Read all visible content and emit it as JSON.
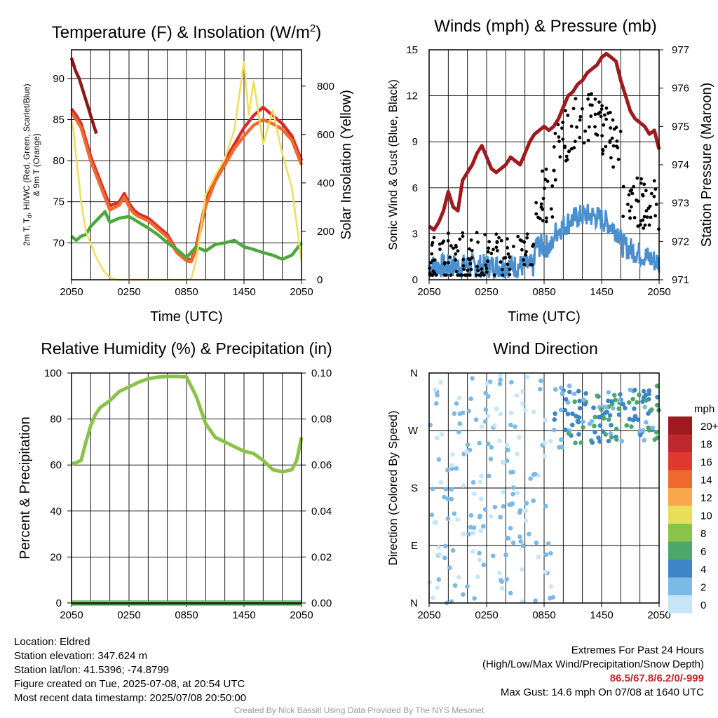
{
  "charts": {
    "temperature": {
      "title": "Temperature (F) & Insolation (W/m",
      "title_sup": "2",
      "title_end": ")",
      "ylabel_lines": [
        "2m T, T",
        "d",
        ", HI/WC (Red, Green, Scarlet/Blue)",
        "& 9m T (Orange)"
      ],
      "ylabel2": "Solar Insolation (Yellow)",
      "xlabel": "Time (UTC)"
    },
    "winds": {
      "title": "Winds (mph) & Pressure (mb)",
      "ylabel": "Sonic Wind & Gust (Blue, Black)",
      "ylabel2": "Station Pressure (Maroon)",
      "xlabel": "Time (UTC)"
    },
    "humidity": {
      "title": "Relative Humidity (%) & Precipitation (in)",
      "ylabel": "Percent & Precipitation"
    },
    "direction": {
      "title": "Wind Direction",
      "ylabel": "Direction (Colored By Speed)",
      "legend_title": "mph",
      "legend_labels": [
        "20+",
        "18",
        "16",
        "14",
        "12",
        "10",
        "8",
        "6",
        "4",
        "2",
        "0"
      ],
      "legend_colors": [
        "#9e1a1f",
        "#c0282d",
        "#e03a30",
        "#ef6a2e",
        "#f8a84a",
        "#e8de5a",
        "#8bc34a",
        "#4aa86a",
        "#3d85c6",
        "#7bb9e6",
        "#c6e6f8"
      ]
    }
  },
  "chart_data": [
    {
      "type": "line",
      "title": "Temperature (F) & Insolation (W/m2)",
      "xlabel": "Time (UTC)",
      "x_ticks": [
        "2050",
        "0250",
        "0850",
        "1450",
        "2050"
      ],
      "x_range_hours": [
        0,
        24
      ],
      "ylim": [
        65.5,
        93.5
      ],
      "y_ticks": [
        70,
        75,
        80,
        85,
        90
      ],
      "y2lim": [
        0,
        950
      ],
      "y2_ticks": [
        0,
        200,
        400,
        600,
        800
      ],
      "series": [
        {
          "axis": "left",
          "color": "#8b1a1a",
          "x": [
            0,
            0.4,
            0.8,
            1.2,
            1.6,
            2.0,
            2.4,
            2.6
          ],
          "values": [
            92.5,
            91.0,
            90.0,
            88.5,
            87.0,
            85.5,
            84.0,
            83.3
          ]
        },
        {
          "axis": "left",
          "color": "#d62e27",
          "x": [
            0,
            0.5,
            1,
            1.5,
            2,
            3,
            4,
            5,
            5.5,
            6,
            6.5,
            7,
            8,
            9,
            10,
            11,
            12,
            12.5,
            13,
            14,
            15,
            16,
            17,
            18,
            19,
            20,
            21,
            22,
            23,
            24
          ],
          "values": [
            86.3,
            85.5,
            84.5,
            82.5,
            80.5,
            77.5,
            74.5,
            75.0,
            76.0,
            74.8,
            74.0,
            73.5,
            73.0,
            72.0,
            71.0,
            69.0,
            68.0,
            67.9,
            69.5,
            75.0,
            78.0,
            80.0,
            82.0,
            84.0,
            85.5,
            86.5,
            85.5,
            84.5,
            83.0,
            80.0
          ]
        },
        {
          "axis": "left",
          "color": "#ef6a2e",
          "x": [
            0,
            0.5,
            1,
            1.5,
            2,
            3,
            4,
            5,
            5.5,
            6,
            6.5,
            7,
            8,
            9,
            10,
            11,
            12,
            12.5,
            13,
            14,
            15,
            16,
            17,
            18,
            19,
            20,
            21,
            22,
            23,
            24
          ],
          "values": [
            85.8,
            85.0,
            84.0,
            82.0,
            80.0,
            77.0,
            74.0,
            74.6,
            75.6,
            74.4,
            73.6,
            73.2,
            72.7,
            71.7,
            70.7,
            68.8,
            67.8,
            67.7,
            69.2,
            74.5,
            77.5,
            79.5,
            81.5,
            83.0,
            84.3,
            85.0,
            84.5,
            83.8,
            82.5,
            79.5
          ]
        },
        {
          "axis": "left",
          "color": "#4aa83c",
          "x": [
            0,
            0.5,
            1,
            1.5,
            2,
            3,
            3.5,
            4,
            5,
            6,
            7,
            8,
            9,
            10,
            11,
            12,
            13,
            14,
            15,
            16,
            17,
            18,
            19,
            20,
            21,
            22,
            23,
            24
          ],
          "values": [
            70.8,
            70.3,
            70.8,
            71.0,
            72.0,
            73.2,
            73.8,
            72.5,
            73.0,
            73.2,
            72.5,
            71.8,
            71.0,
            70.0,
            69.2,
            68.2,
            69.5,
            69.0,
            69.8,
            70.0,
            70.3,
            69.5,
            69.2,
            68.8,
            68.5,
            68.0,
            68.5,
            70.0
          ]
        },
        {
          "axis": "right",
          "color": "#f2dc58",
          "x": [
            0,
            0.2,
            0.5,
            0.8,
            1.0,
            1.5,
            2.0,
            2.5,
            3.0,
            3.5,
            4.0,
            4.5,
            5,
            12,
            12.5,
            13,
            14,
            15,
            16,
            17,
            18,
            18.5,
            19,
            20,
            21,
            22,
            23,
            24
          ],
          "values": [
            650,
            620,
            500,
            400,
            320,
            200,
            150,
            100,
            60,
            30,
            10,
            2,
            0,
            0,
            5,
            80,
            350,
            430,
            500,
            620,
            900,
            680,
            820,
            560,
            700,
            520,
            380,
            80
          ]
        }
      ]
    },
    {
      "type": "line",
      "title": "Winds (mph) & Pressure (mb)",
      "xlabel": "Time (UTC)",
      "x_ticks": [
        "2050",
        "0250",
        "0850",
        "1450",
        "2050"
      ],
      "x_range_hours": [
        0,
        24
      ],
      "ylim": [
        0,
        15
      ],
      "y_ticks": [
        0,
        3,
        6,
        9,
        12,
        15
      ],
      "y2lim": [
        971,
        977
      ],
      "y2_ticks": [
        971,
        972,
        973,
        974,
        975,
        976,
        977
      ],
      "series": [
        {
          "axis": "right",
          "color": "#9e1a1f",
          "x": [
            0,
            0.5,
            1,
            1.5,
            2,
            2.5,
            3,
            3.5,
            4,
            4.5,
            5,
            5.5,
            6,
            6.5,
            7,
            7.5,
            8,
            8.5,
            9,
            9.5,
            10,
            10.5,
            11,
            11.5,
            12,
            12.5,
            13,
            13.5,
            14,
            14.5,
            15,
            15.5,
            16,
            16.5,
            17,
            17.5,
            18,
            18.5,
            19,
            19.5,
            20,
            20.5,
            21,
            21.5,
            22,
            22.5,
            23,
            23.5,
            24
          ],
          "values": [
            972.4,
            972.3,
            972.5,
            972.8,
            973.3,
            972.9,
            972.8,
            973.6,
            973.8,
            974.0,
            974.3,
            974.5,
            974.2,
            973.9,
            973.8,
            973.9,
            974.0,
            974.2,
            974.1,
            974.0,
            974.3,
            974.6,
            974.8,
            974.9,
            975.0,
            974.9,
            975.0,
            975.2,
            975.5,
            975.8,
            975.9,
            976.1,
            976.2,
            976.4,
            976.5,
            976.6,
            976.8,
            976.9,
            976.8,
            976.7,
            976.2,
            975.8,
            975.4,
            975.2,
            975.1,
            975.0,
            974.8,
            974.9,
            974.4
          ]
        }
      ]
    },
    {
      "type": "line",
      "title": "Relative Humidity (%) & Precipitation (in)",
      "ylabel": "Percent & Precipitation",
      "x_ticks": [
        "2050",
        "0250",
        "0850",
        "1450",
        "2050"
      ],
      "x_range_hours": [
        0,
        24
      ],
      "ylim": [
        0,
        100
      ],
      "y_ticks": [
        0,
        20,
        40,
        60,
        80,
        100
      ],
      "y2lim": [
        0,
        0.1
      ],
      "y2_ticks": [
        "0.00",
        "0.02",
        "0.04",
        "0.06",
        "0.08",
        "0.10"
      ],
      "series": [
        {
          "axis": "left",
          "color": "#8bc34a",
          "x": [
            0,
            0.5,
            1,
            1.5,
            2,
            2.5,
            3,
            4,
            5,
            6,
            7,
            8,
            9,
            10,
            11,
            12,
            13,
            14,
            15,
            16,
            17,
            18,
            19,
            20,
            21,
            22,
            23,
            23.5,
            24
          ],
          "values": [
            60.5,
            61,
            62,
            70,
            77,
            82,
            85,
            88,
            92,
            94,
            96,
            97.5,
            98.2,
            98.5,
            98.5,
            98.3,
            90,
            78,
            72,
            70,
            68,
            66,
            65,
            62,
            58,
            57,
            58,
            62,
            72
          ]
        },
        {
          "axis": "right",
          "color": "#2e8b3e",
          "x": [
            0,
            24
          ],
          "values": [
            0,
            0
          ]
        }
      ]
    },
    {
      "type": "scatter",
      "title": "Wind Direction",
      "ylabel": "Direction (Colored By Speed)",
      "x_ticks": [
        "2050",
        "0250",
        "0850",
        "1450",
        "2050"
      ],
      "x_range_hours": [
        0,
        24
      ],
      "ylim": [
        0,
        360
      ],
      "y_ticks": [
        "N",
        "E",
        "S",
        "W",
        "N"
      ],
      "legend": {
        "title": "mph",
        "position": "right"
      }
    }
  ],
  "footer": {
    "location": "Location: Eldred",
    "elevation": "Station elevation: 347.624 m",
    "latlon": "Station lat/lon: 41.5396; -74.8799",
    "created": "Figure created on Tue, 2025-07-08, at 20:54 UTC",
    "recent": "Most recent data timestamp: 2025/07/08 20:50:00",
    "extremes_title": "Extremes For Past 24 Hours",
    "extremes_sub": "(High/Low/Max Wind/Precipitation/Snow Depth)",
    "extremes_values": "86.5/67.8/6.2/0/-999",
    "max_gust": "Max Gust: 14.6 mph On 07/08 at 1640 UTC",
    "credit": "Created By Nick Bassill Using Data Provided By The NYS Mesonet"
  }
}
